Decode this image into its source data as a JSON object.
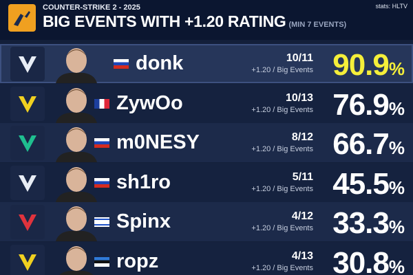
{
  "header": {
    "category": "COUNTER-STRIKE 2 - 2025",
    "title": "BIG EVENTS WITH +1.20 RATING",
    "subtitle": "(MIN 7 EVENTS)",
    "source": "stats: HLTV"
  },
  "rows": [
    {
      "name": "donk",
      "fraction": "10/11",
      "caption": "+1.20 / Big Events",
      "percent": "90.9",
      "unit": "%"
    },
    {
      "name": "ZywOo",
      "fraction": "10/13",
      "caption": "+1.20 / Big Events",
      "percent": "76.9",
      "unit": "%"
    },
    {
      "name": "m0NESY",
      "fraction": "8/12",
      "caption": "+1.20 / Big Events",
      "percent": "66.7",
      "unit": "%"
    },
    {
      "name": "sh1ro",
      "fraction": "5/11",
      "caption": "+1.20 / Big Events",
      "percent": "45.5",
      "unit": "%"
    },
    {
      "name": "Spinx",
      "fraction": "4/12",
      "caption": "+1.20 / Big Events",
      "percent": "33.3",
      "unit": "%"
    },
    {
      "name": "ropz",
      "fraction": "4/13",
      "caption": "+1.20 / Big Events",
      "percent": "30.8",
      "unit": "%"
    }
  ]
}
